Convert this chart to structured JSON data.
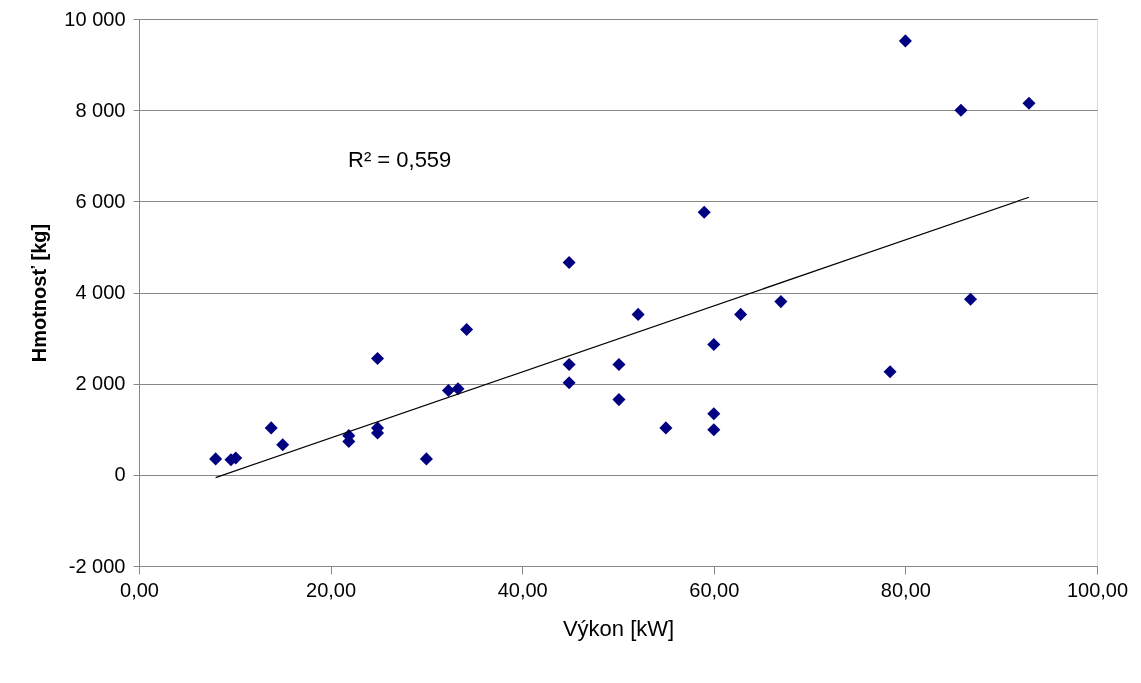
{
  "chart_data": {
    "type": "scatter",
    "xlabel": "Výkon  [kW]",
    "ylabel": "Hmotnosť [kg]",
    "xlim": [
      0,
      100
    ],
    "ylim": [
      -2000,
      10000
    ],
    "xticks": [
      {
        "value": 0,
        "label": "0,00"
      },
      {
        "value": 20,
        "label": "20,00"
      },
      {
        "value": 40,
        "label": "40,00"
      },
      {
        "value": 60,
        "label": "60,00"
      },
      {
        "value": 80,
        "label": "80,00"
      },
      {
        "value": 100,
        "label": "100,00"
      }
    ],
    "yticks": [
      {
        "value": -2000,
        "label": "-2 000"
      },
      0,
      {
        "value": 2000,
        "label": "2 000"
      },
      {
        "value": 4000,
        "label": "4 000"
      },
      {
        "value": 6000,
        "label": "6 000"
      },
      {
        "value": 8000,
        "label": "8 000"
      },
      {
        "value": 10000,
        "label": "10 000"
      }
    ],
    "grid": "y",
    "marker": "diamond",
    "annotations": [
      "R² = 0,559"
    ],
    "series": [
      {
        "type": "scatter",
        "color": "#000080",
        "x": [
          8.0,
          9.6,
          10.1,
          13.8,
          15.0,
          21.9,
          21.9,
          24.9,
          24.9,
          24.9,
          30.0,
          32.3,
          33.3,
          34.2,
          44.9,
          44.9,
          44.9,
          50.1,
          50.1,
          52.1,
          55.0,
          59.0,
          60.0,
          60.0,
          60.0,
          62.8,
          67.0,
          78.4,
          80.0,
          85.8,
          86.8,
          92.9
        ],
        "values": [
          350,
          330,
          370,
          1030,
          660,
          860,
          730,
          2550,
          1030,
          920,
          350,
          1850,
          1890,
          3190,
          4660,
          2420,
          2020,
          2420,
          1650,
          3520,
          1030,
          5760,
          2860,
          1340,
          990,
          3520,
          3800,
          2260,
          9520,
          8000,
          3850,
          8150
        ]
      },
      {
        "type": "line",
        "marker": "none",
        "color": "#000000",
        "x": [
          8.0,
          92.9
        ],
        "values": [
          -60,
          6090
        ]
      }
    ]
  }
}
